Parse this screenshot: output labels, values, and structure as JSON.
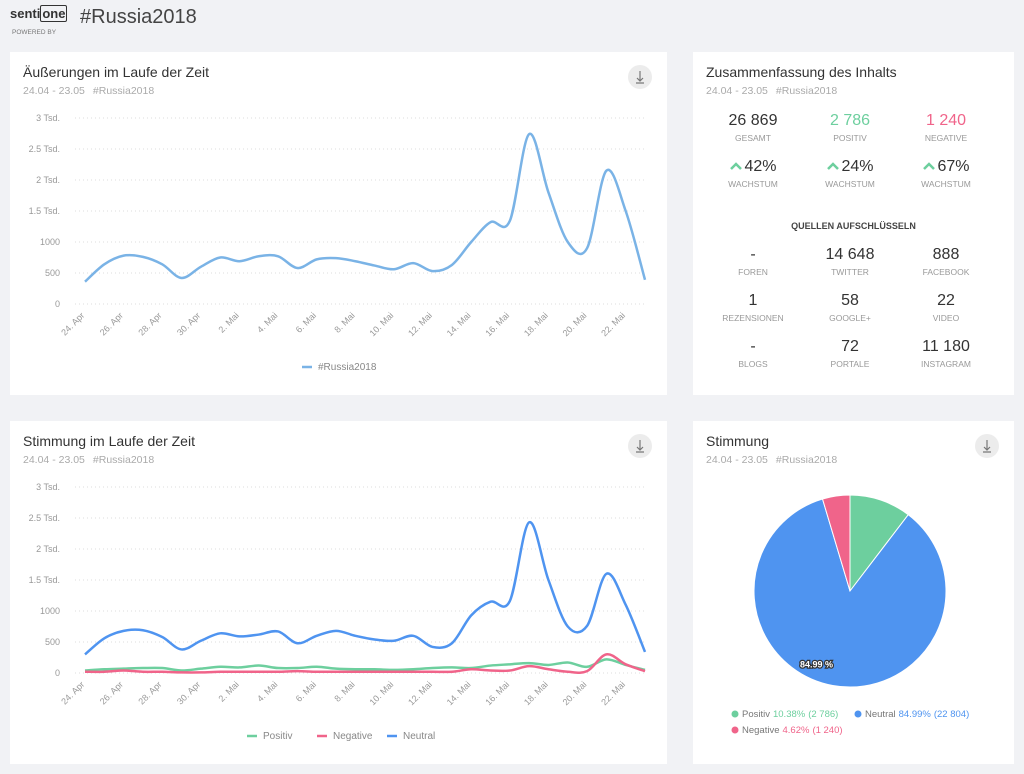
{
  "header": {
    "logo_top": "senti",
    "logo_box": "one",
    "powered_by": "POWERED BY",
    "title": "#Russia2018"
  },
  "summary": {
    "title": "Zusammenfassung des Inhalts",
    "period": "24.04 - 23.05",
    "tag": "#Russia2018",
    "totals": [
      {
        "value": "26 869",
        "label": "GESAMT",
        "color": "#333333"
      },
      {
        "value": "2 786",
        "label": "POSITIV",
        "color": "#6dcf9e"
      },
      {
        "value": "1 240",
        "label": "NEGATIVE",
        "color": "#f0648a"
      }
    ],
    "growth": [
      {
        "value": "42%",
        "label": "WACHSTUM"
      },
      {
        "value": "24%",
        "label": "WACHSTUM"
      },
      {
        "value": "67%",
        "label": "WACHSTUM"
      }
    ],
    "sources_title": "QUELLEN AUFSCHLÜSSELN",
    "sources": [
      {
        "value": "-",
        "label": "FOREN"
      },
      {
        "value": "14 648",
        "label": "TWITTER"
      },
      {
        "value": "888",
        "label": "FACEBOOK"
      },
      {
        "value": "1",
        "label": "REZENSIONEN"
      },
      {
        "value": "58",
        "label": "GOOGLE+"
      },
      {
        "value": "22",
        "label": "VIDEO"
      },
      {
        "value": "-",
        "label": "BLOGS"
      },
      {
        "value": "72",
        "label": "PORTALE"
      },
      {
        "value": "11 180",
        "label": "INSTAGRAM"
      }
    ]
  },
  "chart_data": [
    {
      "type": "line",
      "title": "Äußerungen im Laufe der Zeit",
      "period": "24.04 - 23.05",
      "tag": "#Russia2018",
      "categories": [
        "24. Apr",
        null,
        "26. Apr",
        null,
        "28. Apr",
        null,
        "30. Apr",
        null,
        "2. Mai",
        null,
        "4. Mai",
        null,
        "6. Mai",
        null,
        "8. Mai",
        null,
        "10. Mai",
        null,
        "12. Mai",
        null,
        "14. Mai",
        null,
        "16. Mai",
        null,
        "18. Mai",
        null,
        "20. Mai",
        null,
        "22. Mai",
        null
      ],
      "series": [
        {
          "name": "#Russia2018",
          "color": "#7ab3e6",
          "values": [
            360,
            640,
            780,
            760,
            640,
            420,
            600,
            750,
            690,
            770,
            770,
            580,
            720,
            740,
            690,
            620,
            560,
            660,
            530,
            630,
            1000,
            1320,
            1340,
            2740,
            1800,
            1000,
            900,
            2150,
            1500,
            390
          ]
        }
      ],
      "ylim": [
        0,
        3000
      ],
      "yticks": [
        0,
        500,
        1000,
        {
          "value": 1500,
          "label": "1.5 Tsd."
        },
        {
          "value": 2000,
          "label": "2 Tsd."
        },
        {
          "value": 2500,
          "label": "2.5 Tsd."
        },
        {
          "value": 3000,
          "label": "3 Tsd."
        }
      ],
      "grid": true
    },
    {
      "type": "line",
      "title": "Stimmung im Laufe der Zeit",
      "period": "24.04 - 23.05",
      "tag": "#Russia2018",
      "categories": [
        "24. Apr",
        null,
        "26. Apr",
        null,
        "28. Apr",
        null,
        "30. Apr",
        null,
        "2. Mai",
        null,
        "4. Mai",
        null,
        "6. Mai",
        null,
        "8. Mai",
        null,
        "10. Mai",
        null,
        "12. Mai",
        null,
        "14. Mai",
        null,
        "16. Mai",
        null,
        "18. Mai",
        null,
        "20. Mai",
        null,
        "22. Mai",
        null
      ],
      "series": [
        {
          "name": "Positiv",
          "color": "#6dcf9e",
          "values": [
            40,
            60,
            70,
            80,
            80,
            40,
            70,
            100,
            90,
            120,
            80,
            80,
            100,
            70,
            60,
            60,
            50,
            60,
            80,
            90,
            80,
            120,
            140,
            160,
            130,
            170,
            100,
            220,
            130,
            50
          ]
        },
        {
          "name": "Negative",
          "color": "#f0648a",
          "values": [
            20,
            20,
            40,
            20,
            20,
            10,
            10,
            20,
            20,
            20,
            20,
            30,
            20,
            20,
            20,
            20,
            20,
            20,
            20,
            20,
            60,
            40,
            40,
            110,
            60,
            20,
            30,
            300,
            140,
            30
          ]
        },
        {
          "name": "Neutral",
          "color": "#4f94f0",
          "values": [
            300,
            560,
            680,
            690,
            580,
            380,
            520,
            640,
            590,
            620,
            670,
            480,
            600,
            680,
            600,
            540,
            520,
            600,
            420,
            480,
            930,
            1150,
            1160,
            2430,
            1500,
            750,
            760,
            1600,
            1100,
            340
          ]
        }
      ],
      "ylim": [
        0,
        3000
      ],
      "yticks": [
        0,
        500,
        1000,
        {
          "value": 1500,
          "label": "1.5 Tsd."
        },
        {
          "value": 2000,
          "label": "2 Tsd."
        },
        {
          "value": 2500,
          "label": "2.5 Tsd."
        },
        {
          "value": 3000,
          "label": "3 Tsd."
        }
      ],
      "grid": true
    },
    {
      "type": "pie",
      "title": "Stimmung",
      "period": "24.04 - 23.05",
      "tag": "#Russia2018",
      "categories": [
        "Positiv",
        "Neutral",
        "Negative"
      ],
      "values": [
        10.38,
        84.99,
        4.62
      ],
      "colors": [
        "#6dcf9e",
        "#4f94f0",
        "#f0648a"
      ],
      "value_labels": [
        "10.38%",
        "84.99%",
        "4.62%"
      ],
      "count_labels": [
        "(2 786)",
        "(22 804)",
        "(1 240)"
      ],
      "inner_labels": [
        null,
        "84.99 %",
        null
      ]
    }
  ]
}
